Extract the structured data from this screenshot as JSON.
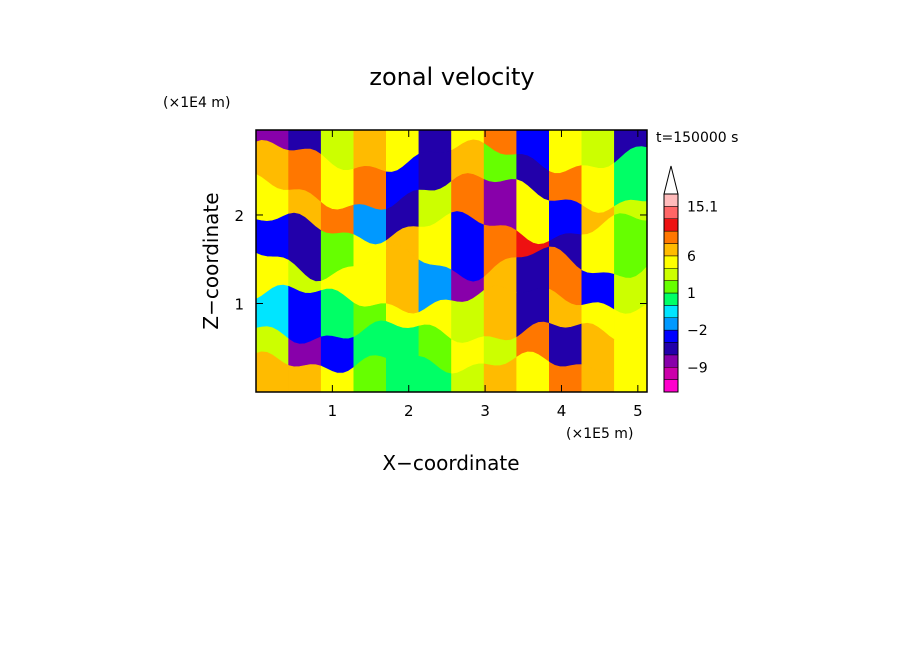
{
  "chart_data": {
    "type": "heatmap",
    "title": "zonal velocity",
    "xlabel": "X−coordinate",
    "ylabel": "Z−coordinate",
    "x_unit": "(×1E5 m)",
    "y_unit": "(×1E4 m)",
    "time_label": "t=150000 s",
    "xlim": [
      0,
      5.12
    ],
    "ylim": [
      0,
      2.96
    ],
    "x_ticks": [
      1,
      2,
      3,
      4,
      5
    ],
    "y_ticks": [
      1,
      2
    ],
    "x_tick_labels": [
      "1",
      "2",
      "3",
      "4",
      "5"
    ],
    "y_tick_labels": [
      "1",
      "2"
    ],
    "colorbar": {
      "levels": [
        -14,
        -12,
        -9,
        -7,
        -4,
        -2,
        -1,
        0,
        1,
        2,
        3,
        6,
        8,
        10,
        12,
        15.1
      ],
      "labels": [
        {
          "value": 15.1,
          "text": "15.1"
        },
        {
          "value": 6,
          "text": "6"
        },
        {
          "value": 1,
          "text": "1"
        },
        {
          "value": -2,
          "text": "−2"
        },
        {
          "value": -9,
          "text": "−9"
        }
      ],
      "colors": [
        "#ff00cc",
        "#cc00aa",
        "#8800aa",
        "#2200aa",
        "#0000ff",
        "#0099ff",
        "#00e5ff",
        "#00ff66",
        "#66ff00",
        "#ccff00",
        "#ffff00",
        "#ffbb00",
        "#ff7700",
        "#ee1111",
        "#ff6666",
        "#ffbbbb"
      ],
      "extend_top": true
    },
    "bands": [
      {
        "z": 2.85,
        "amp": 0.12,
        "freq": 3.0,
        "phase": 0.3,
        "values": [
          -8,
          -6,
          2,
          6,
          3,
          -5,
          4,
          8,
          -4,
          5,
          2,
          -6
        ]
      },
      {
        "z": 2.45,
        "amp": 0.15,
        "freq": 2.4,
        "phase": 1.1,
        "values": [
          7,
          9,
          4,
          8,
          -3,
          -7,
          6,
          1,
          -5,
          9,
          3,
          0
        ]
      },
      {
        "z": 2.05,
        "amp": 0.18,
        "freq": 2.0,
        "phase": 2.0,
        "values": [
          3,
          6,
          8,
          -2,
          -6,
          2,
          9,
          -8,
          3,
          -4,
          7,
          2
        ]
      },
      {
        "z": 1.65,
        "amp": 0.14,
        "freq": 2.7,
        "phase": 0.7,
        "values": [
          -4,
          -6,
          1,
          4,
          7,
          5,
          -3,
          8,
          10,
          -7,
          4,
          1
        ]
      },
      {
        "z": 1.25,
        "amp": 0.16,
        "freq": 3.3,
        "phase": 1.8,
        "values": [
          5,
          2,
          4,
          3,
          6,
          -2,
          -8,
          6,
          -6,
          8,
          -3,
          2
        ]
      },
      {
        "z": 0.85,
        "amp": 0.12,
        "freq": 2.2,
        "phase": 0.4,
        "values": [
          -1,
          -3,
          0,
          1,
          3,
          4,
          2,
          6,
          -5,
          7,
          3,
          5
        ]
      },
      {
        "z": 0.5,
        "amp": 0.1,
        "freq": 2.9,
        "phase": 2.5,
        "values": [
          2,
          -8,
          -4,
          0,
          0,
          1,
          3,
          2,
          8,
          -6,
          6,
          4
        ]
      },
      {
        "z": 0.15,
        "amp": 0.08,
        "freq": 3.6,
        "phase": 1.3,
        "values": [
          6,
          7,
          4,
          1,
          0,
          0,
          2,
          6,
          5,
          8,
          6,
          4
        ]
      }
    ]
  }
}
